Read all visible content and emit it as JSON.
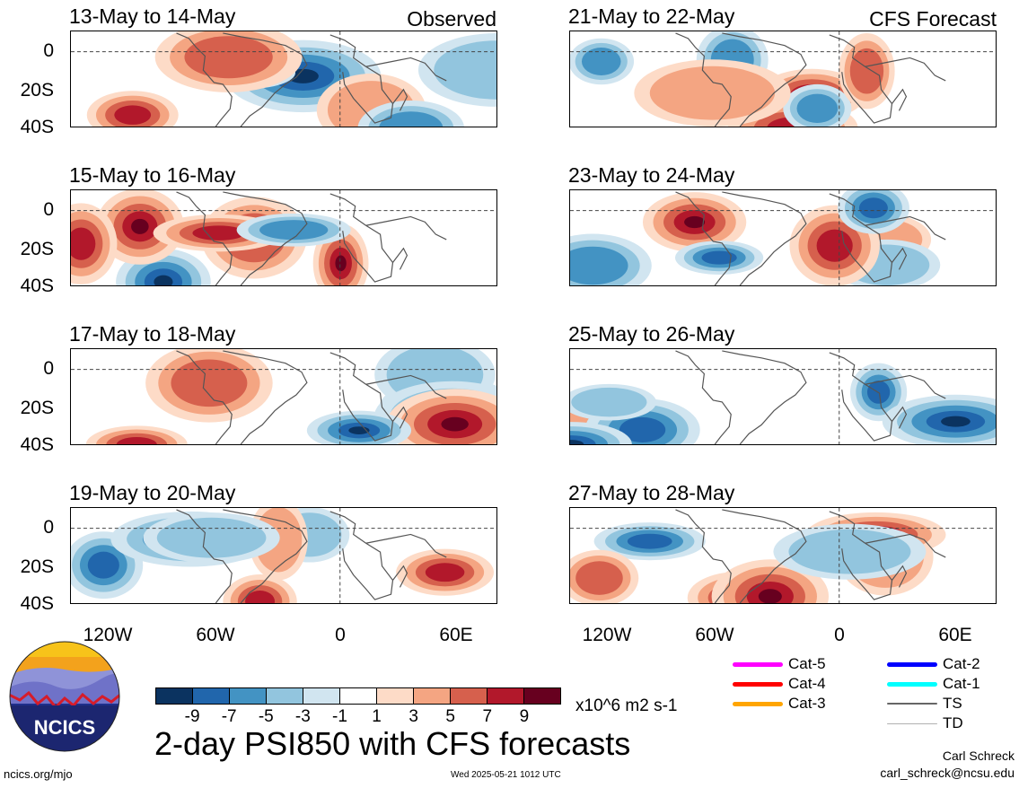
{
  "panels": [
    {
      "title": "13-May to 14-May",
      "tag": "Observed"
    },
    {
      "title": "21-May to 22-May",
      "tag": "CFS Forecast"
    },
    {
      "title": "15-May to 16-May",
      "tag": ""
    },
    {
      "title": "23-May to 24-May",
      "tag": ""
    },
    {
      "title": "17-May to 18-May",
      "tag": ""
    },
    {
      "title": "25-May to 26-May",
      "tag": ""
    },
    {
      "title": "19-May to 20-May",
      "tag": ""
    },
    {
      "title": "27-May to 28-May",
      "tag": ""
    }
  ],
  "y_axis_labels": [
    "0",
    "20S",
    "40S"
  ],
  "x_axis_labels": [
    "120W",
    "60W",
    "0",
    "60E"
  ],
  "colorbar": {
    "colors": [
      "#0b3360",
      "#2166ac",
      "#4393c3",
      "#92c5de",
      "#d1e5f0",
      "#ffffff",
      "#fddbc7",
      "#f4a582",
      "#d6604d",
      "#b2182b",
      "#67001f"
    ],
    "labels": [
      "-9",
      "-7",
      "-5",
      "-3",
      "-1",
      "1",
      "3",
      "5",
      "7",
      "9"
    ],
    "units": "x10^6 m2 s-1"
  },
  "main_title": "2-day PSI850 with CFS forecasts",
  "legend": [
    {
      "label": "Cat-5",
      "color": "#ff00ff"
    },
    {
      "label": "Cat-2",
      "color": "#0000ff"
    },
    {
      "label": "Cat-4",
      "color": "#ff0000"
    },
    {
      "label": "Cat-1",
      "color": "#00ffff"
    },
    {
      "label": "Cat-3",
      "color": "#ffa500"
    },
    {
      "label": "TS",
      "color": "#666666"
    },
    {
      "label": "TD",
      "color": "#b0b0b0"
    }
  ],
  "logo_text": "NCICS",
  "footer": {
    "site": "ncics.org/mjo",
    "timestamp": "Wed 2025-05-21 1012 UTC",
    "author": "Carl Schreck",
    "email": "carl_schreck@ncsu.edu"
  }
}
